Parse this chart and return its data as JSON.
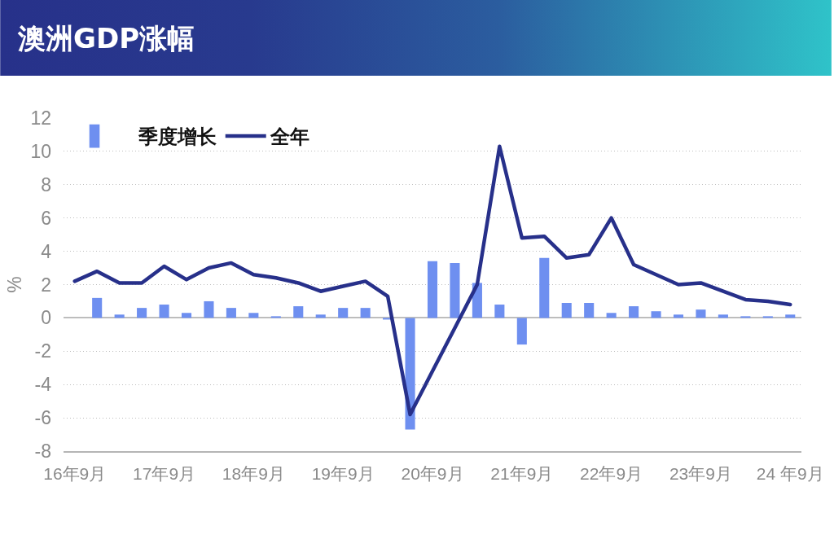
{
  "chart_data": {
    "type": "bar",
    "title": "澳洲GDP涨幅",
    "ylabel": "%",
    "categories": [
      "16年9月",
      null,
      null,
      null,
      "17年9月",
      null,
      null,
      null,
      "18年9月",
      null,
      null,
      null,
      "19年9月",
      null,
      null,
      null,
      "20年9月",
      null,
      null,
      null,
      "21年9月",
      null,
      null,
      null,
      "22年9月",
      null,
      null,
      null,
      "23年9月",
      null,
      null,
      null,
      "24 年9月"
    ],
    "series": [
      {
        "name": "季度增长",
        "color": "#6e8ff0",
        "values": [
          null,
          1.2,
          0.2,
          0.6,
          0.8,
          0.3,
          1.0,
          0.6,
          0.3,
          0.1,
          0.7,
          0.2,
          0.6,
          0.6,
          -0.1,
          -6.7,
          3.4,
          3.3,
          2.1,
          0.8,
          -1.6,
          3.6,
          0.9,
          0.9,
          0.3,
          0.7,
          0.4,
          0.2,
          0.5,
          0.2,
          0.1,
          0.1,
          0.2
        ]
      },
      {
        "name": "全年",
        "type": "line",
        "color": "#27308a",
        "values": [
          2.2,
          2.8,
          2.1,
          2.1,
          3.1,
          2.3,
          3.0,
          3.3,
          2.6,
          2.4,
          2.1,
          1.6,
          1.9,
          2.2,
          1.3,
          -5.8,
          -3.2,
          -0.6,
          2.0,
          10.3,
          4.8,
          4.9,
          3.6,
          3.8,
          6.0,
          3.2,
          2.6,
          2.0,
          2.1,
          1.6,
          1.1,
          1.0,
          0.8
        ]
      }
    ],
    "ylim": [
      -8,
      12
    ],
    "yticks": [
      -8,
      -6,
      -4,
      -2,
      0,
      2,
      4,
      6,
      8,
      10,
      12
    ],
    "grid": "y",
    "legend": "top left",
    "marker": "none",
    "line_style": "solid"
  }
}
